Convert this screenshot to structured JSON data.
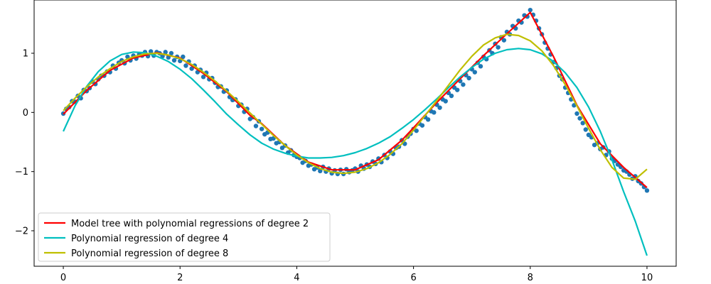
{
  "chart_data": {
    "type": "scatter",
    "title": "",
    "xlabel": "",
    "ylabel": "",
    "xlim": [
      -0.5,
      10.5
    ],
    "ylim": [
      -2.6,
      1.9
    ],
    "xticks": [
      0,
      2,
      4,
      6,
      8,
      10
    ],
    "xtick_labels": [
      "0",
      "2",
      "4",
      "6",
      "8",
      "10"
    ],
    "yticks": [
      -2,
      -1,
      0,
      1
    ],
    "ytick_labels": [
      "−2",
      "−1",
      "0",
      "1"
    ],
    "grid": false,
    "legend_position": "lower-left",
    "scatter": {
      "color": "#1f77b4",
      "x": [
        0.0,
        0.05,
        0.1,
        0.15,
        0.2,
        0.25,
        0.3,
        0.35,
        0.4,
        0.45,
        0.5,
        0.55,
        0.6,
        0.65,
        0.7,
        0.75,
        0.8,
        0.85,
        0.9,
        0.95,
        1.0,
        1.05,
        1.1,
        1.15,
        1.2,
        1.25,
        1.3,
        1.35,
        1.4,
        1.45,
        1.5,
        1.55,
        1.6,
        1.65,
        1.7,
        1.75,
        1.8,
        1.85,
        1.9,
        1.95,
        2.0,
        2.05,
        2.1,
        2.15,
        2.2,
        2.25,
        2.3,
        2.35,
        2.4,
        2.45,
        2.5,
        2.55,
        2.6,
        2.65,
        2.7,
        2.75,
        2.8,
        2.85,
        2.9,
        2.95,
        3.0,
        3.05,
        3.1,
        3.15,
        3.2,
        3.25,
        3.3,
        3.35,
        3.4,
        3.45,
        3.5,
        3.55,
        3.6,
        3.65,
        3.7,
        3.75,
        3.8,
        3.85,
        3.9,
        3.95,
        4.0,
        4.05,
        4.1,
        4.15,
        4.2,
        4.25,
        4.3,
        4.35,
        4.4,
        4.45,
        4.5,
        4.55,
        4.6,
        4.65,
        4.7,
        4.75,
        4.8,
        4.85,
        4.9,
        4.95,
        5.0,
        5.05,
        5.1,
        5.15,
        5.2,
        5.25,
        5.3,
        5.35,
        5.4,
        5.45,
        5.5,
        5.55,
        5.6,
        5.65,
        5.7,
        5.75,
        5.8,
        5.85,
        5.9,
        5.95,
        6.0,
        6.05,
        6.1,
        6.15,
        6.2,
        6.25,
        6.3,
        6.35,
        6.4,
        6.45,
        6.5,
        6.55,
        6.6,
        6.65,
        6.7,
        6.75,
        6.8,
        6.85,
        6.9,
        6.95,
        7.0,
        7.05,
        7.1,
        7.15,
        7.2,
        7.25,
        7.3,
        7.35,
        7.4,
        7.45,
        7.5,
        7.55,
        7.6,
        7.65,
        7.7,
        7.75,
        7.8,
        7.85,
        7.9,
        7.95,
        8.0,
        8.05,
        8.1,
        8.15,
        8.2,
        8.25,
        8.3,
        8.35,
        8.4,
        8.45,
        8.5,
        8.55,
        8.6,
        8.65,
        8.7,
        8.75,
        8.8,
        8.85,
        8.9,
        8.95,
        9.0,
        9.05,
        9.1,
        9.15,
        9.2,
        9.25,
        9.3,
        9.35,
        9.4,
        9.45,
        9.5,
        9.55,
        9.6,
        9.65,
        9.7,
        9.75,
        9.8,
        9.85,
        9.9,
        9.95,
        10.0
      ],
      "y": [
        -0.02,
        0.06,
        0.09,
        0.19,
        0.18,
        0.28,
        0.24,
        0.38,
        0.36,
        0.41,
        0.52,
        0.48,
        0.56,
        0.62,
        0.62,
        0.69,
        0.68,
        0.79,
        0.74,
        0.84,
        0.88,
        0.83,
        0.94,
        0.88,
        0.96,
        0.91,
        0.98,
        0.96,
        1.02,
        0.95,
        1.03,
        0.96,
        1.02,
        1.0,
        0.95,
        1.02,
        0.93,
        1.0,
        0.88,
        0.94,
        0.87,
        0.94,
        0.79,
        0.86,
        0.74,
        0.79,
        0.68,
        0.72,
        0.6,
        0.67,
        0.56,
        0.58,
        0.5,
        0.43,
        0.44,
        0.35,
        0.37,
        0.26,
        0.21,
        0.22,
        0.11,
        0.13,
        0.01,
        0.06,
        -0.11,
        -0.08,
        -0.23,
        -0.15,
        -0.28,
        -0.37,
        -0.34,
        -0.45,
        -0.44,
        -0.52,
        -0.5,
        -0.6,
        -0.56,
        -0.68,
        -0.64,
        -0.72,
        -0.75,
        -0.77,
        -0.85,
        -0.82,
        -0.9,
        -0.88,
        -0.96,
        -0.93,
        -0.99,
        -0.92,
        -1.0,
        -0.95,
        -1.03,
        -0.98,
        -1.04,
        -0.97,
        -1.04,
        -0.96,
        -1.01,
        -0.98,
        -0.95,
        -1.0,
        -0.9,
        -0.95,
        -0.88,
        -0.92,
        -0.83,
        -0.87,
        -0.78,
        -0.84,
        -0.72,
        -0.77,
        -0.66,
        -0.7,
        -0.6,
        -0.58,
        -0.47,
        -0.53,
        -0.41,
        -0.36,
        -0.28,
        -0.31,
        -0.19,
        -0.22,
        -0.08,
        -0.12,
        0.02,
        0.0,
        0.13,
        0.08,
        0.22,
        0.19,
        0.33,
        0.28,
        0.42,
        0.38,
        0.53,
        0.47,
        0.63,
        0.58,
        0.73,
        0.68,
        0.84,
        0.78,
        0.94,
        0.9,
        1.05,
        1.0,
        1.16,
        1.1,
        1.27,
        1.22,
        1.36,
        1.32,
        1.46,
        1.42,
        1.55,
        1.52,
        1.64,
        1.62,
        1.73,
        1.65,
        1.55,
        1.42,
        1.32,
        1.18,
        1.08,
        0.98,
        0.85,
        0.75,
        0.62,
        0.56,
        0.42,
        0.33,
        0.22,
        0.12,
        -0.02,
        -0.1,
        -0.18,
        -0.29,
        -0.38,
        -0.42,
        -0.55,
        -0.52,
        -0.62,
        -0.59,
        -0.72,
        -0.66,
        -0.78,
        -0.82,
        -0.88,
        -0.92,
        -0.98,
        -1.0,
        -1.05,
        -1.12,
        -1.08,
        -1.16,
        -1.2,
        -1.26,
        -1.32
      ]
    },
    "series": [
      {
        "name": "Model tree with polynomial regressions of degree 2",
        "color": "#ff0000",
        "x": [
          0.0,
          0.4,
          0.8,
          1.2,
          1.6,
          2.0,
          2.4,
          2.8,
          3.2,
          3.4,
          3.4,
          3.8,
          4.2,
          4.6,
          5.0,
          5.4,
          5.8,
          6.0,
          6.0,
          6.4,
          6.8,
          7.2,
          7.6,
          8.0,
          8.0,
          8.4,
          8.8,
          9.2,
          9.6,
          10.0
        ],
        "y": [
          -0.03,
          0.37,
          0.71,
          0.92,
          1.01,
          0.92,
          0.66,
          0.35,
          -0.05,
          -0.19,
          -0.19,
          -0.56,
          -0.84,
          -0.97,
          -0.97,
          -0.8,
          -0.47,
          -0.26,
          -0.26,
          0.17,
          0.57,
          0.96,
          1.33,
          1.69,
          1.69,
          0.94,
          0.12,
          -0.53,
          -0.93,
          -1.27
        ]
      },
      {
        "name": "Polynomial regression of degree 4",
        "color": "#00bfbf",
        "x": [
          0.0,
          0.2,
          0.4,
          0.6,
          0.8,
          1.0,
          1.2,
          1.4,
          1.6,
          1.8,
          2.0,
          2.2,
          2.4,
          2.6,
          2.8,
          3.0,
          3.2,
          3.4,
          3.6,
          3.8,
          4.0,
          4.2,
          4.4,
          4.6,
          4.8,
          5.0,
          5.2,
          5.4,
          5.6,
          5.8,
          6.0,
          6.2,
          6.4,
          6.6,
          6.8,
          7.0,
          7.2,
          7.4,
          7.6,
          7.8,
          8.0,
          8.2,
          8.4,
          8.6,
          8.8,
          9.0,
          9.2,
          9.4,
          9.6,
          9.8,
          10.0
        ],
        "y": [
          -0.32,
          0.11,
          0.44,
          0.69,
          0.87,
          0.98,
          1.02,
          1.01,
          0.95,
          0.86,
          0.73,
          0.57,
          0.38,
          0.18,
          -0.03,
          -0.21,
          -0.38,
          -0.52,
          -0.62,
          -0.69,
          -0.74,
          -0.77,
          -0.77,
          -0.76,
          -0.73,
          -0.68,
          -0.61,
          -0.52,
          -0.41,
          -0.27,
          -0.12,
          0.05,
          0.23,
          0.42,
          0.6,
          0.76,
          0.9,
          1.0,
          1.06,
          1.08,
          1.06,
          0.99,
          0.86,
          0.67,
          0.42,
          0.09,
          -0.32,
          -0.8,
          -1.34,
          -1.84,
          -2.42
        ]
      },
      {
        "name": "Polynomial regression of degree 8",
        "color": "#bfbf00",
        "x": [
          0.0,
          0.2,
          0.4,
          0.6,
          0.8,
          1.0,
          1.2,
          1.4,
          1.6,
          1.8,
          2.0,
          2.2,
          2.4,
          2.6,
          2.8,
          3.0,
          3.2,
          3.4,
          3.6,
          3.8,
          4.0,
          4.2,
          4.4,
          4.6,
          4.8,
          5.0,
          5.2,
          5.4,
          5.6,
          5.8,
          6.0,
          6.2,
          6.4,
          6.6,
          6.8,
          7.0,
          7.2,
          7.4,
          7.6,
          7.8,
          8.0,
          8.2,
          8.4,
          8.6,
          8.8,
          9.0,
          9.2,
          9.4,
          9.6,
          9.8,
          10.0
        ],
        "y": [
          0.03,
          0.24,
          0.43,
          0.6,
          0.74,
          0.86,
          0.94,
          0.99,
          1.0,
          0.97,
          0.91,
          0.81,
          0.68,
          0.53,
          0.36,
          0.18,
          -0.01,
          -0.2,
          -0.39,
          -0.56,
          -0.72,
          -0.85,
          -0.95,
          -1.01,
          -1.03,
          -1.01,
          -0.95,
          -0.85,
          -0.71,
          -0.53,
          -0.3,
          -0.05,
          0.2,
          0.46,
          0.72,
          0.95,
          1.14,
          1.26,
          1.32,
          1.3,
          1.21,
          1.04,
          0.79,
          0.47,
          0.11,
          -0.27,
          -0.63,
          -0.93,
          -1.11,
          -1.13,
          -0.96
        ]
      }
    ]
  }
}
